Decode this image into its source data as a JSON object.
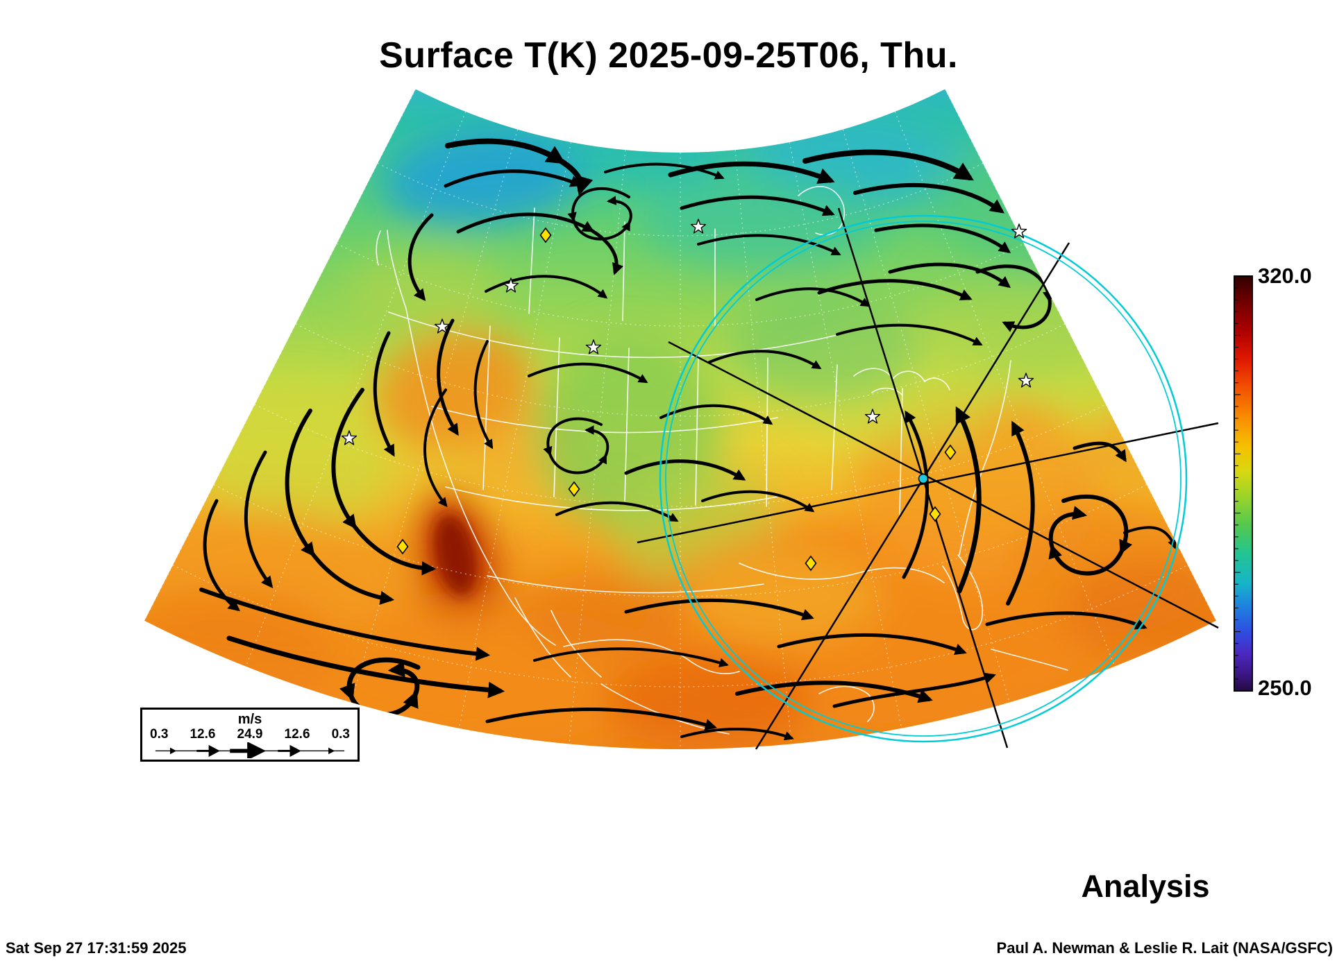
{
  "header": {
    "title": "Surface T(K) 2025-09-25T06, Thu."
  },
  "colorbar": {
    "max_label": "320.0",
    "min_label": "250.0"
  },
  "wind_legend": {
    "units_label": "m/s",
    "tick_labels": [
      "0.3",
      "12.6",
      "24.9",
      "12.6",
      "0.3"
    ]
  },
  "annotations": {
    "mode_label": "Analysis"
  },
  "footer": {
    "timestamp": "Sat Sep 27 17:31:59 2025",
    "credit": "Paul A. Newman & Leslie R. Lait (NASA/GSFC)"
  },
  "colors": {
    "range_ring": "#00ccd8",
    "diamond_marker": "#ffe000",
    "scale_hot": "#300000",
    "scale_cold": "#230a40"
  },
  "chart_data": {
    "type": "heatmap",
    "title": "Surface T(K) 2025-09-25T06, Thu.",
    "colorbar_range": [
      250.0,
      320.0
    ],
    "colorbar_tick_labels": [
      "320.0",
      "250.0"
    ],
    "wind_scale_ms": [
      0.3,
      12.6,
      24.9,
      12.6,
      0.3
    ],
    "mode": "Analysis"
  }
}
